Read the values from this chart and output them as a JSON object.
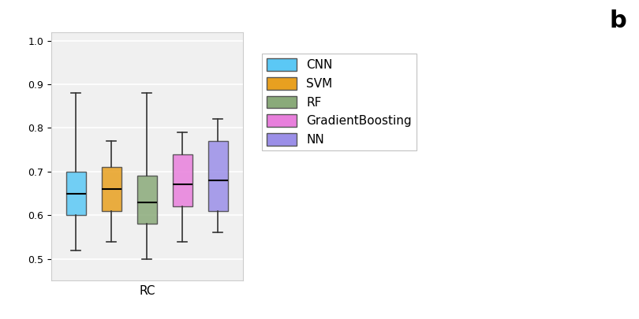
{
  "title": "",
  "xlabel": "RC",
  "ylabel": "",
  "legend_labels": [
    "CNN",
    "SVM",
    "RF",
    "GradientBoosting",
    "NN"
  ],
  "legend_colors": [
    "#5bc8f5",
    "#e8a020",
    "#8aaa7a",
    "#e87fdc",
    "#9b8fe8"
  ],
  "box_data": {
    "CNN": {
      "whislo": 0.52,
      "q1": 0.6,
      "med": 0.65,
      "q3": 0.7,
      "whishi": 0.88
    },
    "SVM": {
      "whislo": 0.54,
      "q1": 0.61,
      "med": 0.66,
      "q3": 0.71,
      "whishi": 0.77
    },
    "RF": {
      "whislo": 0.5,
      "q1": 0.58,
      "med": 0.63,
      "q3": 0.69,
      "whishi": 0.88
    },
    "GradientBoosting": {
      "whislo": 0.54,
      "q1": 0.62,
      "med": 0.67,
      "q3": 0.74,
      "whishi": 0.79
    },
    "NN": {
      "whislo": 0.56,
      "q1": 0.61,
      "med": 0.68,
      "q3": 0.77,
      "whishi": 0.82
    }
  },
  "ylim": [
    0.45,
    1.02
  ],
  "yticks": [
    0.5,
    0.6,
    0.7,
    0.8,
    0.9,
    1.0
  ],
  "figsize": [
    8.1,
    4.05
  ],
  "dpi": 100,
  "panel_label": "b",
  "background_color": "#f0f0f0"
}
